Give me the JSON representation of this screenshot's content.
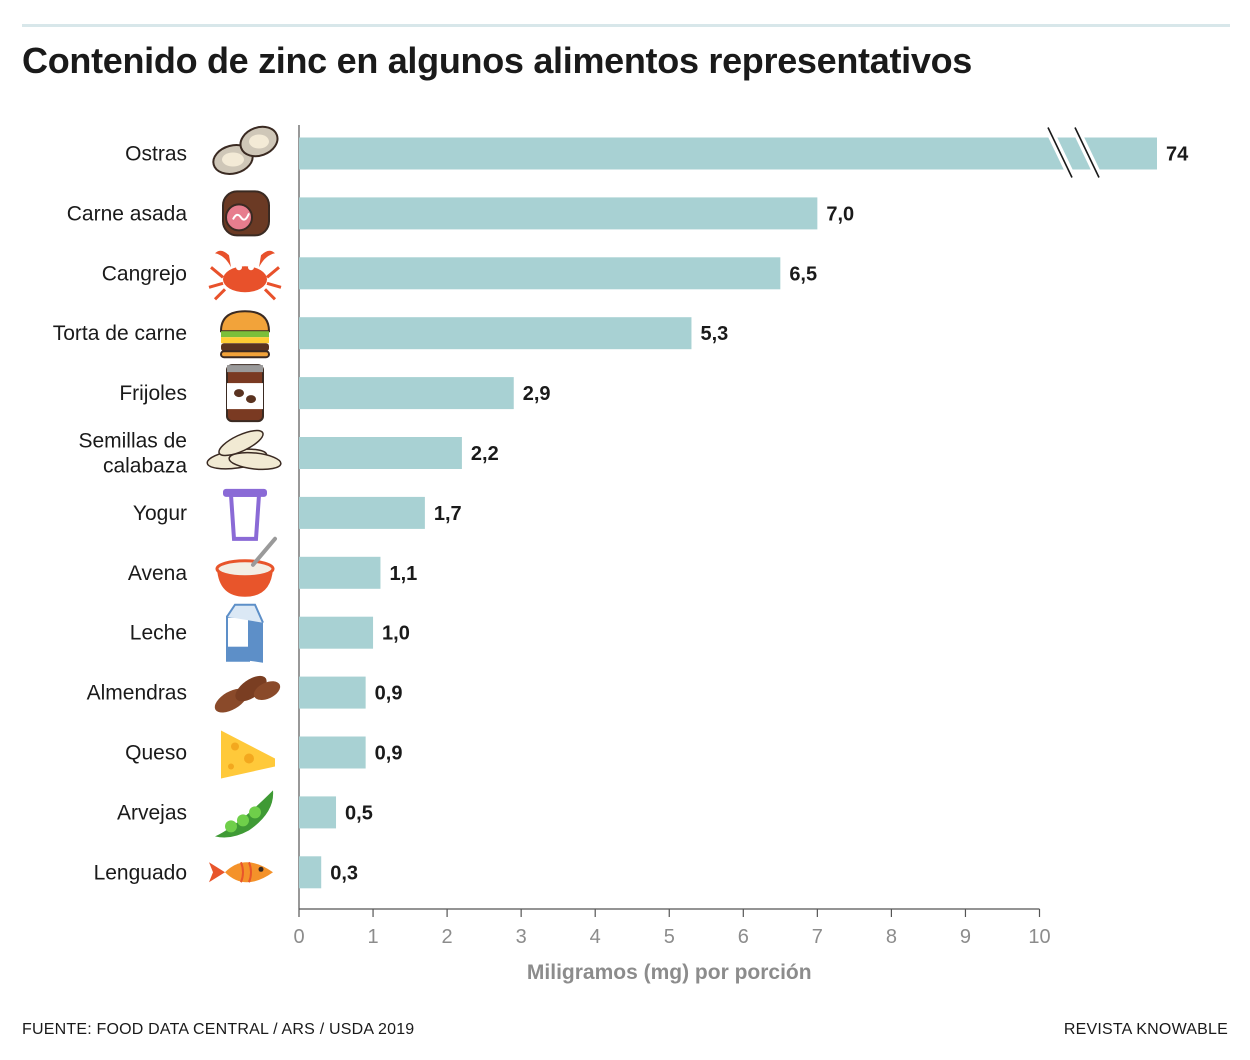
{
  "header": {
    "title": "Contenido de zinc en algunos alimentos representativos"
  },
  "chart_data": {
    "type": "bar",
    "orientation": "horizontal",
    "title": "Contenido de zinc en algunos alimentos representativos",
    "xlabel": "Miligramos (mg) por porción",
    "ylabel": "",
    "xlim": [
      0,
      10
    ],
    "x_ticks": [
      0,
      1,
      2,
      3,
      4,
      5,
      6,
      7,
      8,
      9,
      10
    ],
    "axis_break": {
      "category": "Ostras",
      "note": "bar truncated; actual value 74"
    },
    "categories": [
      [
        "Ostras"
      ],
      [
        "Carne asada"
      ],
      [
        "Cangrejo"
      ],
      [
        "Torta de carne"
      ],
      [
        "Frijoles"
      ],
      [
        "Semillas de",
        "calabaza"
      ],
      [
        "Yogur"
      ],
      [
        "Avena"
      ],
      [
        "Leche"
      ],
      [
        "Almendras"
      ],
      [
        "Queso"
      ],
      [
        "Arvejas"
      ],
      [
        "Lenguado"
      ]
    ],
    "values": [
      74,
      7.0,
      6.5,
      5.3,
      2.9,
      2.2,
      1.7,
      1.1,
      1.0,
      0.9,
      0.9,
      0.5,
      0.3
    ],
    "value_labels": [
      "74",
      "7,0",
      "6,5",
      "5,3",
      "2,9",
      "2,2",
      "1,7",
      "1,1",
      "1,0",
      "0,9",
      "0,9",
      "0,5",
      "0,3"
    ],
    "icons": [
      "oyster-icon",
      "roast-beef-icon",
      "crab-icon",
      "burger-icon",
      "beans-can-icon",
      "pumpkin-seeds-icon",
      "yogurt-icon",
      "oatmeal-bowl-icon",
      "milk-carton-icon",
      "almonds-icon",
      "cheese-icon",
      "peas-icon",
      "fish-icon"
    ],
    "bar_color": "#a8d1d3",
    "grid": false,
    "legend": "none"
  },
  "footer": {
    "source": "FUENTE: FOOD DATA CENTRAL / ARS / USDA 2019",
    "publisher": "REVISTA KNOWABLE"
  }
}
